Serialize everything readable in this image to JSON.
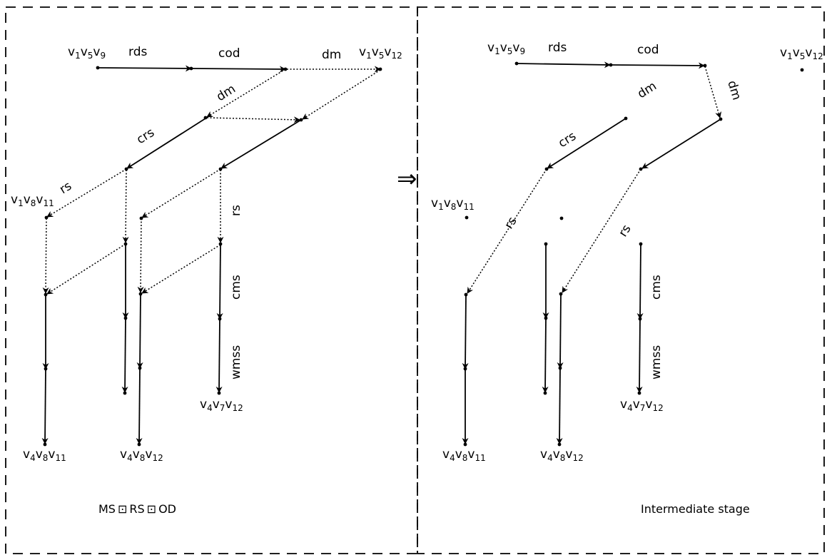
{
  "left_panel": {
    "caption_parts": [
      "MS",
      "RS",
      "OD"
    ],
    "caption_operator": "⊡",
    "node_labels": {
      "top_start": {
        "base": [
          "v",
          "v",
          "v"
        ],
        "subs": [
          "1",
          "5",
          "9"
        ]
      },
      "top_end": {
        "base": [
          "v",
          "v",
          "v"
        ],
        "subs": [
          "1",
          "5",
          "12"
        ]
      },
      "mid_left": {
        "base": [
          "v",
          "v",
          "v"
        ],
        "subs": [
          "1",
          "8",
          "11"
        ]
      },
      "bottom_left": {
        "base": [
          "v",
          "v",
          "v"
        ],
        "subs": [
          "4",
          "8",
          "11"
        ]
      },
      "bottom_mid": {
        "base": [
          "v",
          "v",
          "v"
        ],
        "subs": [
          "4",
          "8",
          "12"
        ]
      },
      "bottom_right": {
        "base": [
          "v",
          "v",
          "v"
        ],
        "subs": [
          "4",
          "7",
          "12"
        ]
      }
    },
    "edge_labels": {
      "rds": "rds",
      "cod": "cod",
      "dm_top": "dm",
      "dm_diag": "dm",
      "crs": "crs",
      "rs_diag": "rs",
      "rs_vert": "rs",
      "cms": "cms",
      "wmss": "wmss"
    }
  },
  "right_panel": {
    "caption": "Intermediate stage",
    "node_labels": {
      "top_start": {
        "base": [
          "v",
          "v",
          "v"
        ],
        "subs": [
          "1",
          "5",
          "9"
        ]
      },
      "top_end": {
        "base": [
          "v",
          "v",
          "v"
        ],
        "subs": [
          "1",
          "5",
          "12"
        ]
      },
      "mid_left": {
        "base": [
          "v",
          "v",
          "v"
        ],
        "subs": [
          "1",
          "8",
          "11"
        ]
      },
      "bottom_left": {
        "base": [
          "v",
          "v",
          "v"
        ],
        "subs": [
          "4",
          "8",
          "11"
        ]
      },
      "bottom_mid": {
        "base": [
          "v",
          "v",
          "v"
        ],
        "subs": [
          "4",
          "8",
          "12"
        ]
      },
      "bottom_right": {
        "base": [
          "v",
          "v",
          "v"
        ],
        "subs": [
          "4",
          "7",
          "12"
        ]
      }
    },
    "edge_labels": {
      "rds": "rds",
      "cod": "cod",
      "dm_a": "dm",
      "dm_b": "dm",
      "crs": "crs",
      "rs_a": "rs",
      "rs_b": "rs",
      "cms": "cms",
      "wmss": "wmss"
    }
  },
  "transition_symbol": "⇒"
}
